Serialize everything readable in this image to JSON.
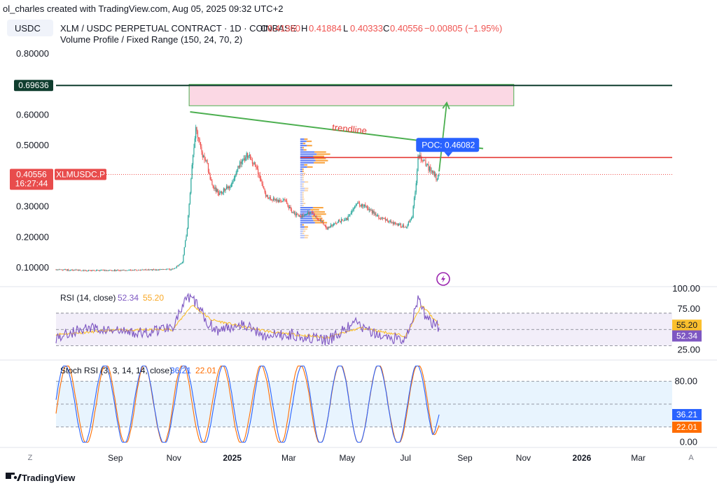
{
  "attribution": "ol_charles created with TradingView.com, Aug 05, 2025 09:32 UTC+2",
  "symbol_button": "USDC",
  "legend": {
    "symbol": "XLM / USDC PERPETUAL CONTRACT · 1D · COINBASE",
    "o_label": "O",
    "o": "0.41360",
    "h_label": "H",
    "h": "0.41884",
    "l_label": "L",
    "l": "0.40333",
    "c_label": "C",
    "c": "0.40556",
    "change": "−0.00805 (−1.95%)",
    "indicator": "Volume Profile / Fixed Range (150, 24, 70, 2)"
  },
  "badges": {
    "level_price": "0.69636",
    "last_price": "0.40556",
    "countdown": "16:27:44",
    "ticker": "XLMUSDC.P",
    "poc": "POC: 0.46082"
  },
  "annotations": {
    "trendline": "trendline"
  },
  "rsi_legend": {
    "name": "RSI (14, close)",
    "v1": "52.34",
    "v2": "55.20"
  },
  "stoch_legend": {
    "name": "Stoch RSI (3, 3, 14, 14, close)",
    "v1": "36.21",
    "v2": "22.01"
  },
  "footer": {
    "brand": "TradingView",
    "z_button": "Z",
    "a_button": "A"
  },
  "colors": {
    "up": "#26a69a",
    "down": "#ef5350",
    "green_line": "#4caf50",
    "red_line": "#e53935",
    "level_line": "#0f3d2e",
    "rsi": "#7e57c2",
    "rsi_ma": "#fbc02d",
    "stoch_k": "#2962ff",
    "stoch_d": "#ff6d00",
    "poc_badge": "#2962ff",
    "vp_blue": "#5b7cf5",
    "vp_orange": "#f9a23c"
  },
  "chart_data": [
    {
      "type": "candlestick",
      "title": "XLM / USDC PERPETUAL CONTRACT · 1D · COINBASE",
      "ylim": [
        0.05,
        0.85
      ],
      "y_ticks": [
        "0.80000",
        "0.60000",
        "0.50000",
        "0.30000",
        "0.20000",
        "0.10000"
      ],
      "x_ticks": [
        "Sep",
        "Nov",
        "2025",
        "Mar",
        "May",
        "Jul",
        "Sep",
        "Nov",
        "2026",
        "Mar"
      ],
      "x_ticks_bold": [
        "2025",
        "2026"
      ],
      "price_path": [
        [
          "2024-07-01",
          0.095
        ],
        [
          "2024-08-01",
          0.091
        ],
        [
          "2024-09-01",
          0.092
        ],
        [
          "2024-10-01",
          0.093
        ],
        [
          "2024-10-31",
          0.095
        ],
        [
          "2024-11-10",
          0.12
        ],
        [
          "2024-11-15",
          0.23
        ],
        [
          "2024-11-20",
          0.43
        ],
        [
          "2024-11-24",
          0.57
        ],
        [
          "2024-11-30",
          0.47
        ],
        [
          "2024-12-05",
          0.45
        ],
        [
          "2024-12-10",
          0.38
        ],
        [
          "2024-12-18",
          0.34
        ],
        [
          "2024-12-30",
          0.37
        ],
        [
          "2025-01-10",
          0.45
        ],
        [
          "2025-01-18",
          0.47
        ],
        [
          "2025-01-27",
          0.42
        ],
        [
          "2025-02-05",
          0.34
        ],
        [
          "2025-02-15",
          0.32
        ],
        [
          "2025-02-25",
          0.32
        ],
        [
          "2025-03-05",
          0.28
        ],
        [
          "2025-03-15",
          0.27
        ],
        [
          "2025-03-25",
          0.28
        ],
        [
          "2025-04-05",
          0.25
        ],
        [
          "2025-04-10",
          0.23
        ],
        [
          "2025-04-20",
          0.25
        ],
        [
          "2025-05-01",
          0.26
        ],
        [
          "2025-05-10",
          0.31
        ],
        [
          "2025-05-20",
          0.3
        ],
        [
          "2025-06-01",
          0.27
        ],
        [
          "2025-06-15",
          0.25
        ],
        [
          "2025-06-25",
          0.24
        ],
        [
          "2025-07-01",
          0.23
        ],
        [
          "2025-07-08",
          0.27
        ],
        [
          "2025-07-12",
          0.38
        ],
        [
          "2025-07-14",
          0.47
        ],
        [
          "2025-07-18",
          0.46
        ],
        [
          "2025-07-24",
          0.43
        ],
        [
          "2025-07-30",
          0.41
        ],
        [
          "2025-08-03",
          0.39
        ],
        [
          "2025-08-05",
          0.40556
        ]
      ],
      "levels": {
        "level_line": 0.69636,
        "poc": 0.46082,
        "last": 0.40556
      },
      "supply_zone": {
        "x0": "2024-11-17",
        "x1": "2025-10-22",
        "y0": 0.63,
        "y1": 0.7
      },
      "trendline": [
        [
          "2024-11-18",
          0.61
        ],
        [
          "2025-09-20",
          0.49
        ]
      ],
      "projection_arrow": [
        [
          "2025-08-05",
          0.415
        ],
        [
          "2025-08-13",
          0.64
        ]
      ]
    },
    {
      "type": "line",
      "title": "RSI (14, close)",
      "ylim": [
        15,
        100
      ],
      "y_ticks": [
        "100.00",
        "75.00",
        "25.00"
      ],
      "bands": [
        30,
        70
      ],
      "series": [
        {
          "name": "52.34",
          "values_path": [
            [
              "2024-07-01",
              40
            ],
            [
              "2024-08-01",
              52
            ],
            [
              "2024-09-01",
              48
            ],
            [
              "2024-10-01",
              45
            ],
            [
              "2024-10-31",
              55
            ],
            [
              "2024-11-15",
              88
            ],
            [
              "2024-11-24",
              84
            ],
            [
              "2024-12-05",
              60
            ],
            [
              "2024-12-18",
              48
            ],
            [
              "2025-01-10",
              58
            ],
            [
              "2025-02-05",
              42
            ],
            [
              "2025-03-05",
              44
            ],
            [
              "2025-04-10",
              36
            ],
            [
              "2025-05-10",
              58
            ],
            [
              "2025-06-01",
              42
            ],
            [
              "2025-07-01",
              38
            ],
            [
              "2025-07-14",
              86
            ],
            [
              "2025-07-24",
              62
            ],
            [
              "2025-08-05",
              52.34
            ]
          ]
        },
        {
          "name": "55.20",
          "values_path": [
            [
              "2024-07-01",
              44
            ],
            [
              "2024-09-01",
              49
            ],
            [
              "2024-10-31",
              50
            ],
            [
              "2024-11-20",
              80
            ],
            [
              "2024-12-10",
              62
            ],
            [
              "2025-01-10",
              54
            ],
            [
              "2025-02-15",
              46
            ],
            [
              "2025-04-10",
              40
            ],
            [
              "2025-05-15",
              52
            ],
            [
              "2025-07-01",
              42
            ],
            [
              "2025-07-18",
              80
            ],
            [
              "2025-08-05",
              55.2
            ]
          ]
        }
      ]
    },
    {
      "type": "line",
      "title": "Stoch RSI (3, 3, 14, 14, close)",
      "ylim": [
        -5,
        105
      ],
      "y_ticks": [
        "80.00",
        "0.00"
      ],
      "bands": [
        20,
        50,
        80
      ],
      "series": [
        {
          "name": "36.21",
          "last": 36.21
        },
        {
          "name": "22.01",
          "last": 22.01
        }
      ]
    }
  ]
}
